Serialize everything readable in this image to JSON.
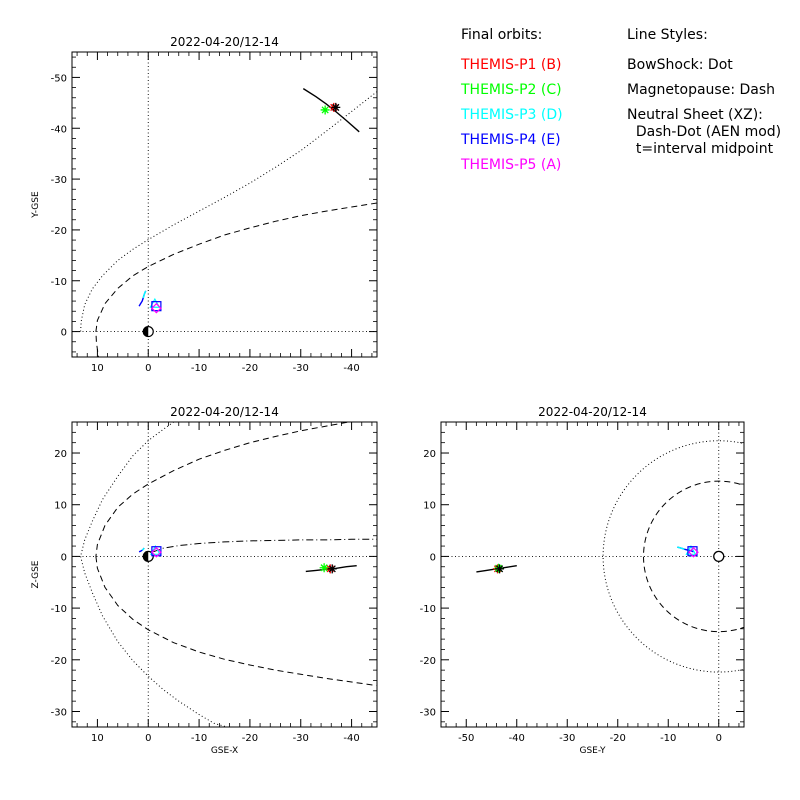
{
  "legend": {
    "header": "Final orbits:",
    "probes": [
      {
        "label": "THEMIS-P1 (B)",
        "color": "#ff0000"
      },
      {
        "label": "THEMIS-P2 (C)",
        "color": "#00ff00"
      },
      {
        "label": "THEMIS-P3 (D)",
        "color": "#00ffff"
      },
      {
        "label": "THEMIS-P4 (E)",
        "color": "#0000ff"
      },
      {
        "label": "THEMIS-P5 (A)",
        "color": "#ff00ff"
      }
    ]
  },
  "line_styles": {
    "header": "Line Styles:",
    "lines": [
      "BowShock: Dot",
      "Magnetopause: Dash",
      "Neutral Sheet (XZ):",
      "  Dash-Dot (AEN mod)",
      "  t=interval midpoint"
    ]
  },
  "chart_data": [
    {
      "type": "line",
      "id": "xy",
      "title": "2022-04-20/12-14",
      "xlabel": "",
      "ylabel": "Y-GSE",
      "xlim": [
        15,
        -45
      ],
      "ylim": [
        5,
        -55
      ],
      "xticks": [
        10,
        0,
        -10,
        -20,
        -30,
        -40
      ],
      "yticks": [
        0,
        -10,
        -20,
        -30,
        -40,
        -50
      ],
      "bow_shock": [
        [
          -45,
          -47.2
        ],
        [
          -40,
          -43.3
        ],
        [
          -35,
          -39.4
        ],
        [
          -30,
          -35.6
        ],
        [
          -25,
          -32.3
        ],
        [
          -20,
          -29.2
        ],
        [
          -15,
          -26.4
        ],
        [
          -10,
          -23.7
        ],
        [
          -5,
          -21
        ],
        [
          0,
          -18.1
        ],
        [
          3,
          -16.2
        ],
        [
          6,
          -14
        ],
        [
          9,
          -11
        ],
        [
          11,
          -8.4
        ],
        [
          12.5,
          -5.3
        ],
        [
          13.2,
          -2
        ],
        [
          13.3,
          0
        ]
      ],
      "magnetopause": [
        [
          -45,
          -25.3
        ],
        [
          -40,
          -24.5
        ],
        [
          -35,
          -23.7
        ],
        [
          -30,
          -22.8
        ],
        [
          -25,
          -21.7
        ],
        [
          -20,
          -20.4
        ],
        [
          -15,
          -19
        ],
        [
          -10,
          -17.2
        ],
        [
          -5,
          -15.2
        ],
        [
          0,
          -12.8
        ],
        [
          3,
          -11
        ],
        [
          6,
          -8.5
        ],
        [
          8.5,
          -5.5
        ],
        [
          10,
          -2.2
        ],
        [
          10.3,
          0
        ],
        [
          10.2,
          2
        ],
        [
          9.8,
          5
        ]
      ],
      "orbits": [
        {
          "x": [
            -30.5,
            -33,
            -35,
            -37,
            -39,
            -41.5
          ],
          "y": [
            -47.8,
            -46.2,
            -44.8,
            -43.2,
            -41.5,
            -39.3
          ]
        },
        {
          "x": [
            0.5,
            0.8,
            1.0,
            1.2,
            1.5,
            1.8
          ],
          "y": [
            -8.0,
            -7.3,
            -6.6,
            -6.0,
            -5.5,
            -5.0
          ]
        }
      ],
      "markers": [
        {
          "probe": "P1",
          "x": -36.5,
          "y": -44.1,
          "marker": "star"
        },
        {
          "probe": "P2",
          "x": -34.8,
          "y": -43.6,
          "marker": "star"
        },
        {
          "probe": "P3",
          "x": -1.3,
          "y": -5.5,
          "marker": "triangle"
        },
        {
          "probe": "P4",
          "x": -1.6,
          "y": -5.0,
          "marker": "square"
        },
        {
          "probe": "P5",
          "x": -1.6,
          "y": -4.6,
          "marker": "diamond"
        }
      ]
    },
    {
      "type": "line",
      "id": "xz",
      "title": "2022-04-20/12-14",
      "xlabel": "GSE-X",
      "ylabel": "Z-GSE",
      "xlim": [
        15,
        -45
      ],
      "ylim": [
        -33,
        26
      ],
      "xticks": [
        10,
        0,
        -10,
        -20,
        -30,
        -40
      ],
      "yticks": [
        -30,
        -20,
        -10,
        0,
        10,
        20
      ],
      "bow_shock_upper": [
        [
          -5,
          26
        ],
        [
          -3,
          24.6
        ],
        [
          0,
          22.4
        ],
        [
          3,
          19.5
        ],
        [
          6,
          15.5
        ],
        [
          9,
          11
        ],
        [
          11,
          6.8
        ],
        [
          12.5,
          3.2
        ],
        [
          13.3,
          0
        ]
      ],
      "bow_shock_lower": [
        [
          13.3,
          0
        ],
        [
          12.5,
          -3.2
        ],
        [
          11,
          -7
        ],
        [
          9,
          -11.5
        ],
        [
          6,
          -16.5
        ],
        [
          3,
          -20.2
        ],
        [
          0,
          -23.2
        ],
        [
          -3,
          -25.8
        ],
        [
          -6,
          -28
        ],
        [
          -10,
          -30.6
        ],
        [
          -13,
          -32.3
        ],
        [
          -15.5,
          -33
        ]
      ],
      "magnetopause_upper": [
        [
          -45,
          26.5
        ],
        [
          -40,
          26.1
        ],
        [
          -35,
          25.2
        ],
        [
          -30,
          24.3
        ],
        [
          -25,
          23.2
        ],
        [
          -20,
          22
        ],
        [
          -15,
          20.5
        ],
        [
          -10,
          18.8
        ],
        [
          -5,
          16.6
        ],
        [
          0,
          14
        ],
        [
          3,
          12.1
        ],
        [
          6,
          9.5
        ],
        [
          8.5,
          6
        ],
        [
          10,
          2.3
        ],
        [
          10.3,
          0
        ]
      ],
      "magnetopause_lower": [
        [
          10.3,
          0
        ],
        [
          10,
          -2.3
        ],
        [
          8.5,
          -6
        ],
        [
          6,
          -9.5
        ],
        [
          3,
          -12.2
        ],
        [
          0,
          -14.2
        ],
        [
          -5,
          -16.7
        ],
        [
          -10,
          -18.5
        ],
        [
          -15,
          -19.9
        ],
        [
          -20,
          -21
        ],
        [
          -25,
          -22
        ],
        [
          -30,
          -22.8
        ],
        [
          -35,
          -23.6
        ],
        [
          -40,
          -24.3
        ],
        [
          -45,
          -25
        ]
      ],
      "neutral_sheet": [
        [
          -1,
          0.9
        ],
        [
          -3,
          1.6
        ],
        [
          -6,
          2.1
        ],
        [
          -10,
          2.5
        ],
        [
          -15,
          2.8
        ],
        [
          -20,
          3.0
        ],
        [
          -25,
          3.1
        ],
        [
          -30,
          3.2
        ],
        [
          -35,
          3.2
        ],
        [
          -40,
          3.3
        ],
        [
          -45,
          3.3
        ]
      ],
      "orbits": [
        {
          "x": [
            -31,
            -33,
            -35,
            -37,
            -39,
            -41
          ],
          "y": [
            -2.9,
            -2.7,
            -2.5,
            -2.3,
            -2.0,
            -1.8
          ]
        },
        {
          "x": [
            0.8,
            1.0,
            1.2,
            1.5,
            1.8
          ],
          "y": [
            1.6,
            1.4,
            1.2,
            1.0,
            0.9
          ]
        }
      ],
      "markers": [
        {
          "probe": "P1",
          "x": -35.8,
          "y": -2.4,
          "marker": "star"
        },
        {
          "probe": "P2",
          "x": -34.6,
          "y": -2.2,
          "marker": "star"
        },
        {
          "probe": "P3",
          "x": -1.4,
          "y": 1.1,
          "marker": "triangle"
        },
        {
          "probe": "P4",
          "x": -1.6,
          "y": 1.0,
          "marker": "square"
        },
        {
          "probe": "P5",
          "x": -1.6,
          "y": 0.8,
          "marker": "diamond"
        }
      ]
    },
    {
      "type": "line",
      "id": "yz",
      "title": "2022-04-20/12-14",
      "xlabel": "GSE-Y",
      "ylabel": "",
      "xlim": [
        -55,
        5
      ],
      "ylim": [
        -33,
        26
      ],
      "xticks": [
        -50,
        -40,
        -30,
        -20,
        -10,
        0
      ],
      "yticks": [
        -30,
        -20,
        -10,
        0,
        10,
        20
      ],
      "bow_shock_circle_radius": 22.9,
      "magnetopause_circle_radius": 14.9,
      "orbits": [
        {
          "x": [
            -48,
            -46,
            -44,
            -42,
            -40
          ],
          "y": [
            -3.0,
            -2.7,
            -2.4,
            -2.1,
            -1.8
          ]
        },
        {
          "x": [
            -8.2,
            -7.5,
            -6.8,
            -6.1,
            -5.5,
            -5.0
          ],
          "y": [
            1.8,
            1.6,
            1.4,
            1.2,
            1.1,
            0.9
          ]
        }
      ],
      "markers": [
        {
          "probe": "P1",
          "x": -43.8,
          "y": -2.4,
          "marker": "star"
        },
        {
          "probe": "P2",
          "x": -43.6,
          "y": -2.3,
          "marker": "star"
        },
        {
          "probe": "P3",
          "x": -5.5,
          "y": 1.1,
          "marker": "triangle"
        },
        {
          "probe": "P4",
          "x": -5.2,
          "y": 1.0,
          "marker": "square"
        },
        {
          "probe": "P5",
          "x": -5.0,
          "y": 0.8,
          "marker": "diamond"
        }
      ]
    }
  ]
}
